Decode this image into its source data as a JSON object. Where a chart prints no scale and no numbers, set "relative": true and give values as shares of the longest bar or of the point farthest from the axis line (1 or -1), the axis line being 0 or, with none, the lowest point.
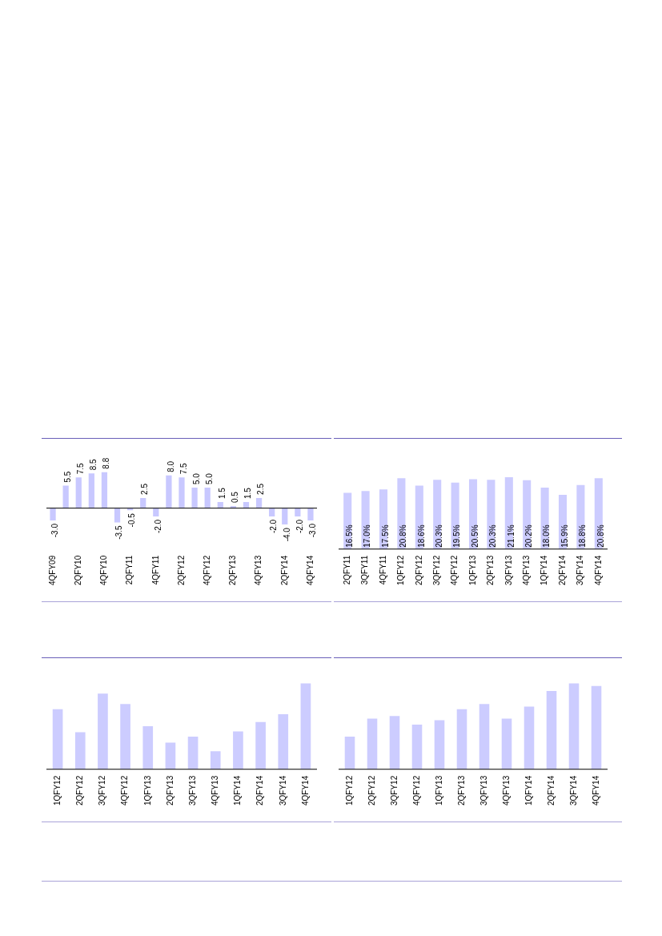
{
  "chart_data": [
    {
      "type": "bar",
      "categories": [
        "4QFY09",
        null,
        "2QFY10",
        null,
        "4QFY10",
        null,
        "2QFY11",
        null,
        "4QFY11",
        null,
        "2QFY12",
        null,
        "4QFY12",
        null,
        "2QFY13",
        null,
        "4QFY13",
        null,
        "2QFY14",
        null,
        "4QFY14"
      ],
      "values": [
        -3.0,
        5.5,
        7.5,
        8.5,
        8.8,
        -3.5,
        -0.5,
        2.5,
        -2.0,
        8.0,
        7.5,
        5.0,
        5.0,
        1.5,
        0.5,
        1.5,
        2.5,
        -2.0,
        -4.0,
        -2.0,
        -3.0
      ],
      "value_labels": [
        "-3.0",
        "5.5",
        "7.5",
        "8.5",
        "8.8",
        "-3.5",
        "-0.5",
        "2.5",
        "-2.0",
        "8.0",
        "7.5",
        "5.0",
        "5.0",
        "1.5",
        "0.5",
        "1.5",
        "2.5",
        "-2.0",
        "-4.0",
        "-2.0",
        "-3.0"
      ],
      "color": "#c8c8ff",
      "grid": false,
      "legend": false,
      "tick_labels": "x"
    },
    {
      "type": "bar",
      "categories": [
        "2QFY11",
        "3QFY11",
        "4QFY11",
        "1QFY12",
        "2QFY12",
        "3QFY12",
        "4QFY12",
        "1QFY13",
        "2QFY13",
        "3QFY13",
        "4QFY13",
        "1QFY14",
        "2QFY14",
        "3QFY14",
        "4QFY14"
      ],
      "values": [
        16.5,
        17.0,
        17.5,
        20.8,
        18.6,
        20.3,
        19.5,
        20.5,
        20.3,
        21.1,
        20.2,
        18.0,
        15.9,
        18.8,
        20.8
      ],
      "value_labels": [
        "16.5%",
        "17.0%",
        "17.5%",
        "20.8%",
        "18.6%",
        "20.3%",
        "19.5%",
        "20.5%",
        "20.3%",
        "21.1%",
        "20.2%",
        "18.0%",
        "15.9%",
        "18.8%",
        "20.8%"
      ],
      "color": "#ccccff",
      "grid": false,
      "legend": false,
      "tick_labels": "x"
    },
    {
      "type": "bar",
      "relative": true,
      "categories": [
        "1QFY12",
        "2QFY12",
        "3QFY12",
        "4QFY12",
        "1QFY13",
        "2QFY13",
        "3QFY13",
        "4QFY13",
        "1QFY14",
        "2QFY14",
        "3QFY14",
        "4QFY14"
      ],
      "values": [
        0.7,
        0.43,
        0.88,
        0.76,
        0.5,
        0.31,
        0.38,
        0.21,
        0.44,
        0.55,
        0.64,
        1
      ],
      "color": "#ccccff",
      "grid": false,
      "legend": false,
      "tick_labels": "x"
    },
    {
      "type": "bar",
      "relative": true,
      "categories": [
        "1QFY12",
        "2QFY12",
        "3QFY12",
        "4QFY12",
        "1QFY13",
        "2QFY13",
        "3QFY13",
        "4QFY13",
        "1QFY14",
        "2QFY14",
        "3QFY14",
        "4QFY14"
      ],
      "values": [
        0.38,
        0.59,
        0.62,
        0.52,
        0.57,
        0.7,
        0.76,
        0.59,
        0.73,
        0.91,
        1,
        0.97
      ],
      "color": "#ccccff",
      "grid": false,
      "legend": false,
      "tick_labels": "x"
    }
  ]
}
